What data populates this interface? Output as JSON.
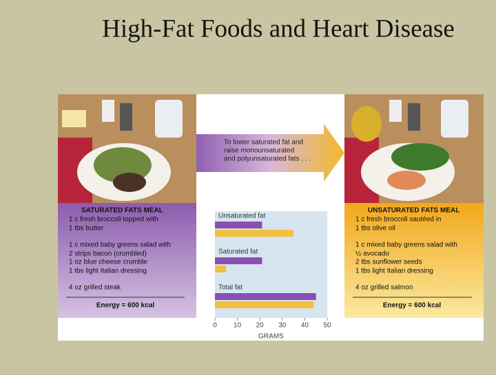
{
  "slide": {
    "title": "High-Fat Foods and Heart Disease"
  },
  "figure": {
    "arrow_text": [
      "To lower saturated fat and",
      "raise monounsaturated",
      "and polyunsaturated fats . . ."
    ],
    "left_panel": {
      "heading": "SATURATED FATS MEAL",
      "lines": [
        "1 c fresh broccoli topped with",
        "1 tbs butter",
        "1 c mixed baby greens salad with",
        "2 strips bacon (crumbled)",
        "1 oz blue cheese crumble",
        "1 tbs light Italian dressing",
        "4 oz grilled steak"
      ],
      "energy": "Energy = 600 kcal"
    },
    "right_panel": {
      "heading": "UNSATURATED FATS MEAL",
      "lines": [
        "1 c fresh broccoli sautéed in",
        "1 tbs olive oil",
        "1 c mixed baby greens salad with",
        "½ avocado",
        "2 tbs sunflower seeds",
        "1 tbs light Italian dressing",
        "4 oz grilled salmon"
      ],
      "energy": "Energy = 600 kcal"
    },
    "chart": {
      "type": "bar",
      "orientation": "horizontal",
      "categories": [
        "Unsaturated fat",
        "Saturated fat",
        "Total fat"
      ],
      "series": [
        {
          "color": "#8a4fb0",
          "values": [
            21,
            21,
            45
          ]
        },
        {
          "color": "#f2c040",
          "values": [
            35,
            5,
            44
          ]
        }
      ],
      "xlim": [
        0,
        50
      ],
      "xticks": [
        0,
        10,
        20,
        30,
        40,
        50
      ],
      "xlabel": "GRAMS"
    }
  }
}
